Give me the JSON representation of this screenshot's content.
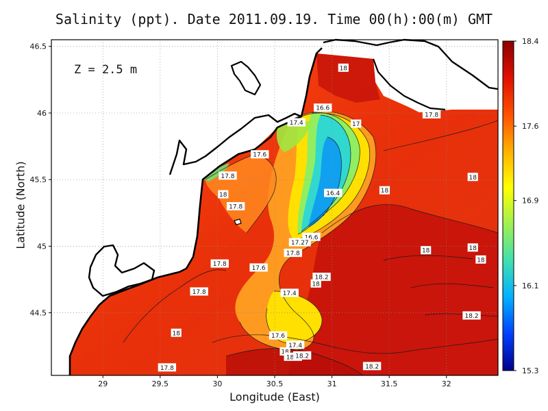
{
  "chart_data": {
    "type": "heatmap",
    "title": "Salinity (ppt). Date 2011.09.19. Time 00(h):00(m) GMT",
    "xlabel": "Longitude (East)",
    "ylabel": "Latitude (North)",
    "annotation": "Z = 2.5 m",
    "xlim": [
      28.55,
      32.45
    ],
    "ylim": [
      44.03,
      46.55
    ],
    "xticks": [
      {
        "v": 29,
        "t": "29"
      },
      {
        "v": 29.5,
        "t": "29.5"
      },
      {
        "v": 30,
        "t": "30"
      },
      {
        "v": 30.5,
        "t": "30.5"
      },
      {
        "v": 31,
        "t": "31"
      },
      {
        "v": 31.5,
        "t": "31.5"
      },
      {
        "v": 32,
        "t": "32"
      }
    ],
    "yticks": [
      {
        "v": 44.5,
        "t": "44.5"
      },
      {
        "v": 45,
        "t": "45"
      },
      {
        "v": 45.5,
        "t": "45.5"
      },
      {
        "v": 46,
        "t": "46"
      },
      {
        "v": 46.5,
        "t": "46.5"
      }
    ],
    "grid": true,
    "colorbar": {
      "min": 15.3,
      "max": 18.4,
      "ticks": [
        {
          "v": 18.4,
          "t": "18.4"
        },
        {
          "v": 17.6,
          "t": "17.6"
        },
        {
          "v": 16.9,
          "t": "16.9"
        },
        {
          "v": 16.1,
          "t": "16.1"
        },
        {
          "v": 15.3,
          "t": "15.3"
        }
      ],
      "colors": [
        "#00008b",
        "#0040ff",
        "#00b0ff",
        "#40e0b0",
        "#a0f050",
        "#ffff00",
        "#ffb000",
        "#ff5000",
        "#e01000",
        "#8b0000"
      ]
    },
    "contour_labels": [
      {
        "lon": 31.1,
        "lat": 46.34,
        "t": "18"
      },
      {
        "lon": 30.92,
        "lat": 46.04,
        "t": "16.6"
      },
      {
        "lon": 30.69,
        "lat": 45.93,
        "t": "17.4"
      },
      {
        "lon": 31.21,
        "lat": 45.92,
        "t": "17"
      },
      {
        "lon": 31.87,
        "lat": 45.99,
        "t": "17.8"
      },
      {
        "lon": 30.37,
        "lat": 45.69,
        "t": "17.6"
      },
      {
        "lon": 30.09,
        "lat": 45.53,
        "t": "17.8"
      },
      {
        "lon": 30.05,
        "lat": 45.39,
        "t": "18"
      },
      {
        "lon": 30.16,
        "lat": 45.3,
        "t": "17.8"
      },
      {
        "lon": 31.01,
        "lat": 45.4,
        "t": "16.4"
      },
      {
        "lon": 31.46,
        "lat": 45.42,
        "t": "18"
      },
      {
        "lon": 32.23,
        "lat": 45.52,
        "t": "18"
      },
      {
        "lon": 30.82,
        "lat": 45.07,
        "t": "16.6"
      },
      {
        "lon": 30.72,
        "lat": 45.03,
        "t": "17.27"
      },
      {
        "lon": 30.66,
        "lat": 44.95,
        "t": "17.8"
      },
      {
        "lon": 31.82,
        "lat": 44.97,
        "t": "18"
      },
      {
        "lon": 32.23,
        "lat": 44.99,
        "t": "18"
      },
      {
        "lon": 32.3,
        "lat": 44.9,
        "t": "18"
      },
      {
        "lon": 30.02,
        "lat": 44.87,
        "t": "17.8"
      },
      {
        "lon": 30.36,
        "lat": 44.84,
        "t": "17.6"
      },
      {
        "lon": 30.91,
        "lat": 44.77,
        "t": "18.2"
      },
      {
        "lon": 30.86,
        "lat": 44.72,
        "t": "18"
      },
      {
        "lon": 29.84,
        "lat": 44.66,
        "t": "17.8"
      },
      {
        "lon": 30.63,
        "lat": 44.65,
        "t": "17.4"
      },
      {
        "lon": 32.22,
        "lat": 44.48,
        "t": "18.2"
      },
      {
        "lon": 29.64,
        "lat": 44.35,
        "t": "18"
      },
      {
        "lon": 30.53,
        "lat": 44.33,
        "t": "17.6"
      },
      {
        "lon": 30.68,
        "lat": 44.26,
        "t": "17.4"
      },
      {
        "lon": 30.59,
        "lat": 44.21,
        "t": "18"
      },
      {
        "lon": 30.66,
        "lat": 44.17,
        "t": "18.2"
      },
      {
        "lon": 30.74,
        "lat": 44.18,
        "t": "18.2"
      },
      {
        "lon": 31.35,
        "lat": 44.1,
        "t": "18.2"
      },
      {
        "lon": 29.56,
        "lat": 44.09,
        "t": "17.8"
      }
    ]
  }
}
